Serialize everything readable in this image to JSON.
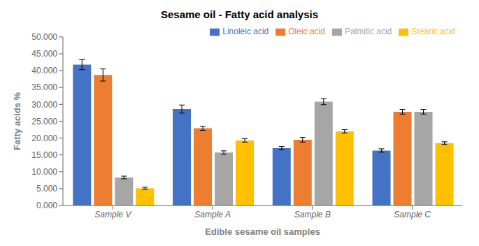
{
  "chart_data": {
    "type": "bar",
    "title": "Sesame oil - Fatty acid analysis",
    "xlabel": "Edible sesame oil samples",
    "ylabel": "Fatty acids %",
    "categories": [
      "Sample V",
      "Sample A",
      "Sample B",
      "Sample C"
    ],
    "series": [
      {
        "name": "Linoleic acid",
        "color": "#4472C4",
        "values": [
          41.8,
          28.6,
          17.0,
          16.3
        ],
        "errors": [
          1.5,
          1.2,
          0.5,
          0.5
        ]
      },
      {
        "name": "Oleic acid",
        "color": "#ED7D31",
        "values": [
          38.7,
          22.9,
          19.5,
          27.8
        ],
        "errors": [
          1.8,
          0.6,
          0.7,
          0.7
        ]
      },
      {
        "name": "Palmitic acid",
        "color": "#A6A6A6",
        "values": [
          8.3,
          15.7,
          30.8,
          27.8
        ],
        "errors": [
          0.4,
          0.5,
          0.9,
          0.7
        ]
      },
      {
        "name": "Stearic acid",
        "color": "#FFC000",
        "values": [
          5.1,
          19.3,
          22.0,
          18.5
        ],
        "errors": [
          0.3,
          0.5,
          0.5,
          0.4
        ]
      }
    ],
    "ylim": [
      0,
      50
    ],
    "yticks": [
      {
        "value": 0,
        "label": "0.000"
      },
      {
        "value": 5,
        "label": "5.000"
      },
      {
        "value": 10,
        "label": "10.000"
      },
      {
        "value": 15,
        "label": "15.000"
      },
      {
        "value": 20,
        "label": "20.000"
      },
      {
        "value": 25,
        "label": "25.000"
      },
      {
        "value": 30,
        "label": "30.000"
      },
      {
        "value": 35,
        "label": "35.000"
      },
      {
        "value": 40,
        "label": "40.000"
      },
      {
        "value": 45,
        "label": "45.000"
      },
      {
        "value": 50,
        "label": "50.000"
      }
    ],
    "grid": false,
    "legend": "upper right"
  }
}
